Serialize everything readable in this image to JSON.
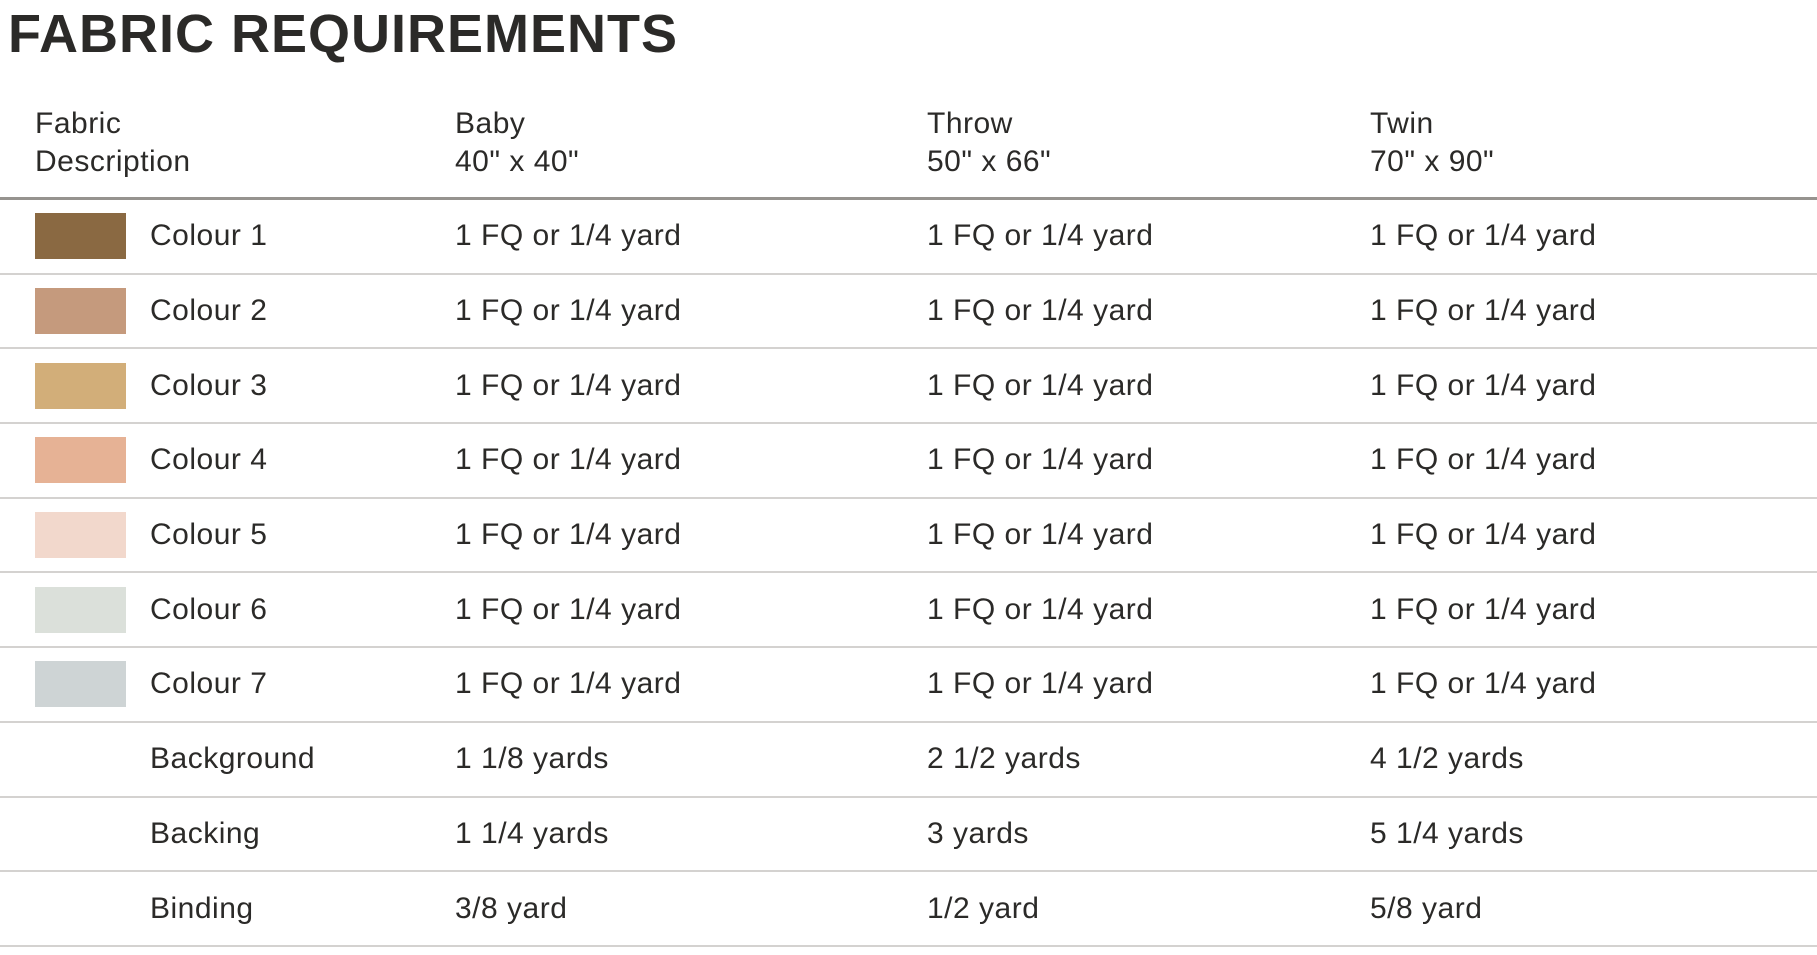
{
  "title": "FABRIC REQUIREMENTS",
  "colors": {
    "text": "#2b2a28",
    "header_rule": "#96938f",
    "row_rule": "#d4d2d0",
    "background": "#ffffff"
  },
  "table": {
    "columns": [
      {
        "line1": "Fabric",
        "line2": "Description"
      },
      {
        "line1": "Baby",
        "line2": "40\" x 40\""
      },
      {
        "line1": "Throw",
        "line2": "50\" x 66\""
      },
      {
        "line1": "Twin",
        "line2": "70\" x 90\""
      }
    ],
    "rows": [
      {
        "label": "Colour 1",
        "swatch": "#8a6942",
        "baby": "1 FQ or 1/4 yard",
        "throw": "1 FQ or 1/4 yard",
        "twin": "1 FQ or 1/4 yard"
      },
      {
        "label": "Colour 2",
        "swatch": "#c59a7d",
        "baby": "1 FQ or 1/4 yard",
        "throw": "1 FQ or 1/4 yard",
        "twin": "1 FQ or 1/4 yard"
      },
      {
        "label": "Colour 3",
        "swatch": "#d2ae79",
        "baby": "1 FQ or 1/4 yard",
        "throw": "1 FQ or 1/4 yard",
        "twin": "1 FQ or 1/4 yard"
      },
      {
        "label": "Colour 4",
        "swatch": "#e6b295",
        "baby": "1 FQ or 1/4 yard",
        "throw": "1 FQ or 1/4 yard",
        "twin": "1 FQ or 1/4 yard"
      },
      {
        "label": "Colour 5",
        "swatch": "#f2d8cc",
        "baby": "1 FQ or 1/4 yard",
        "throw": "1 FQ or 1/4 yard",
        "twin": "1 FQ or 1/4 yard"
      },
      {
        "label": "Colour 6",
        "swatch": "#dbe0da",
        "baby": "1 FQ or 1/4 yard",
        "throw": "1 FQ or 1/4 yard",
        "twin": "1 FQ or 1/4 yard"
      },
      {
        "label": "Colour 7",
        "swatch": "#ced4d5",
        "baby": "1 FQ or 1/4 yard",
        "throw": "1 FQ or 1/4 yard",
        "twin": "1 FQ or 1/4 yard"
      },
      {
        "label": "Background",
        "swatch": null,
        "baby": "1 1/8 yards",
        "throw": "2 1/2 yards",
        "twin": "4 1/2 yards"
      },
      {
        "label": "Backing",
        "swatch": null,
        "baby": "1 1/4 yards",
        "throw": "3 yards",
        "twin": "5 1/4 yards"
      },
      {
        "label": "Binding",
        "swatch": null,
        "baby": "3/8 yard",
        "throw": "1/2 yard",
        "twin": "5/8 yard"
      }
    ]
  }
}
